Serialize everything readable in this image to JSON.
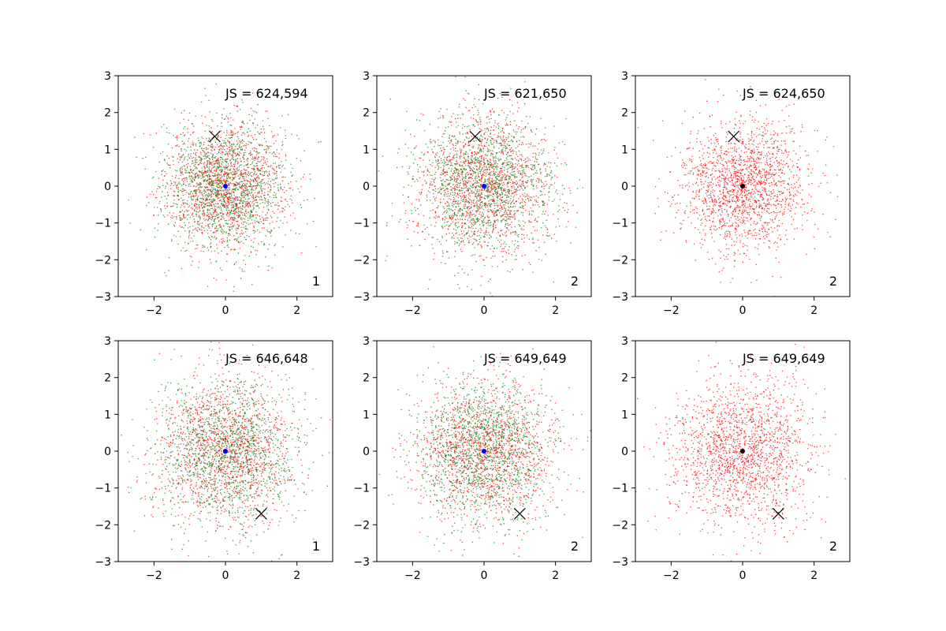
{
  "chart_data": [
    {
      "type": "scatter",
      "annotation": "JS = 624,594",
      "corner_label": "1",
      "xlim": [
        -3,
        3
      ],
      "ylim": [
        -3,
        3
      ],
      "xticks": [
        "−2",
        "0",
        "2"
      ],
      "yticks": [
        "−3",
        "−2",
        "−1",
        "0",
        "1",
        "2",
        "3"
      ],
      "cloud": {
        "colors": [
          "#ff0000",
          "#008000"
        ],
        "points_per_color": 1400,
        "spread": 0.85
      },
      "marker_x": [
        -0.3,
        1.35
      ],
      "center_dot": {
        "x": 0,
        "y": 0,
        "color": "#0000ff"
      }
    },
    {
      "type": "scatter",
      "annotation": "JS = 621,650",
      "corner_label": "2",
      "xlim": [
        -3,
        3
      ],
      "ylim": [
        -3,
        3
      ],
      "xticks": [
        "−2",
        "0",
        "2"
      ],
      "yticks": [
        "−3",
        "−2",
        "−1",
        "0",
        "1",
        "2",
        "3"
      ],
      "cloud": {
        "colors": [
          "#ff0000",
          "#008000"
        ],
        "points_per_color": 1400,
        "spread": 0.95
      },
      "marker_x": [
        -0.25,
        1.35
      ],
      "center_dot": {
        "x": 0,
        "y": 0,
        "color": "#0000ff"
      }
    },
    {
      "type": "scatter",
      "annotation": "JS = 624,650",
      "corner_label": "2",
      "xlim": [
        -3,
        3
      ],
      "ylim": [
        -3,
        3
      ],
      "xticks": [
        "−2",
        "0",
        "2"
      ],
      "yticks": [
        "−3",
        "−2",
        "−1",
        "0",
        "1",
        "2",
        "3"
      ],
      "cloud": {
        "colors": [
          "#ff0000"
        ],
        "points_per_color": 1800,
        "spread": 0.9
      },
      "marker_x": [
        -0.25,
        1.35
      ],
      "center_dot": {
        "x": 0,
        "y": 0,
        "color": "#000000"
      }
    },
    {
      "type": "scatter",
      "annotation": "JS = 646,648",
      "corner_label": "1",
      "xlim": [
        -3,
        3
      ],
      "ylim": [
        -3,
        3
      ],
      "xticks": [
        "−2",
        "0",
        "2"
      ],
      "yticks": [
        "−3",
        "−2",
        "−1",
        "0",
        "1",
        "2",
        "3"
      ],
      "cloud": {
        "colors": [
          "#ff0000",
          "#008000"
        ],
        "points_per_color": 1400,
        "spread": 1.0
      },
      "marker_x": [
        1.0,
        -1.7
      ],
      "center_dot": {
        "x": 0,
        "y": 0,
        "color": "#0000ff"
      }
    },
    {
      "type": "scatter",
      "annotation": "JS = 649,649",
      "corner_label": "2",
      "xlim": [
        -3,
        3
      ],
      "ylim": [
        -3,
        3
      ],
      "xticks": [
        "−2",
        "0",
        "2"
      ],
      "yticks": [
        "−3",
        "−2",
        "−1",
        "0",
        "1",
        "2",
        "3"
      ],
      "cloud": {
        "colors": [
          "#ff0000",
          "#008000"
        ],
        "points_per_color": 1400,
        "spread": 0.95
      },
      "marker_x": [
        1.0,
        -1.7
      ],
      "center_dot": {
        "x": 0,
        "y": 0,
        "color": "#0000ff"
      }
    },
    {
      "type": "scatter",
      "annotation": "JS = 649,649",
      "corner_label": "2",
      "xlim": [
        -3,
        3
      ],
      "ylim": [
        -3,
        3
      ],
      "xticks": [
        "−2",
        "0",
        "2"
      ],
      "yticks": [
        "−3",
        "−2",
        "−1",
        "0",
        "1",
        "2",
        "3"
      ],
      "cloud": {
        "colors": [
          "#ff0000"
        ],
        "points_per_color": 1800,
        "spread": 1.0
      },
      "marker_x": [
        1.0,
        -1.7
      ],
      "center_dot": {
        "x": 0,
        "y": 0,
        "color": "#000000"
      }
    }
  ]
}
